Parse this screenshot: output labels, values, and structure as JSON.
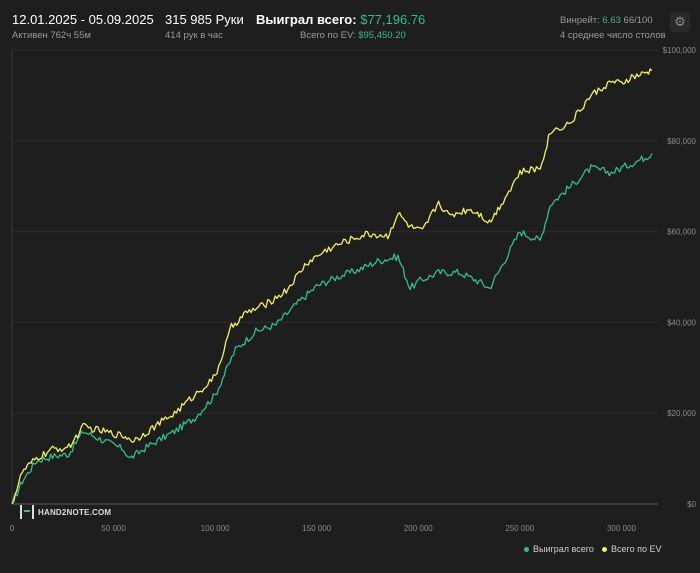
{
  "header": {
    "date_range": "12.01.2025 - 05.09.2025",
    "active_time": "Активен 762ч 55м",
    "hands": "315 985 Руки",
    "hands_per_hour": "414 рук в час",
    "won_label": "Выиграл всего:",
    "won_value": "$77,196.76",
    "ev_label": "Всего по EV:",
    "ev_value": "$95,450.20",
    "winrate_label": "Винрейт:",
    "winrate_value": "6.63",
    "winrate_suffix": "66/100",
    "tables": "4 среднее число столов",
    "settings_icon": "gear-icon"
  },
  "watermark": "HAND2NOTE.COM",
  "colors": {
    "background": "#1e1e1e",
    "won": "#2fbf8a",
    "ev": "#f2f25a",
    "grid": "#2c2c2c"
  },
  "chart_data": {
    "type": "line",
    "xlabel": "",
    "ylabel": "",
    "xlim": [
      0,
      318000
    ],
    "ylim": [
      0,
      100000
    ],
    "x_ticks": [
      0,
      50000,
      100000,
      150000,
      200000,
      250000,
      300000
    ],
    "x_tick_labels": [
      "0",
      "50 000",
      "100 000",
      "150 000",
      "200 000",
      "250 000",
      "300 000"
    ],
    "y_ticks": [
      0,
      20000,
      40000,
      60000,
      80000,
      100000
    ],
    "y_tick_labels": [
      "$0",
      "$20,000",
      "$40,000",
      "$60,000",
      "$80,000",
      "$100,000"
    ],
    "legend_position": "bottom-right",
    "series": [
      {
        "name": "Выиграл всего",
        "color": "#2fbf8a",
        "x": [
          0,
          5000,
          12000,
          20000,
          28000,
          35000,
          45000,
          55000,
          58000,
          68000,
          80000,
          90000,
          100000,
          110000,
          120000,
          130000,
          140000,
          150000,
          160000,
          170000,
          180000,
          190000,
          196000,
          200000,
          210000,
          220000,
          230000,
          235000,
          240000,
          250000,
          260000,
          265000,
          275000,
          285000,
          295000,
          300000,
          310000,
          315000
        ],
        "values": [
          0,
          5000,
          9500,
          10500,
          11000,
          16000,
          14000,
          12000,
          10000,
          13000,
          16000,
          19000,
          24000,
          34000,
          38000,
          39500,
          44000,
          48000,
          50000,
          51500,
          53500,
          54500,
          47500,
          49000,
          51000,
          51000,
          49000,
          47500,
          51500,
          60000,
          58000,
          66000,
          70000,
          74000,
          73000,
          74000,
          76000,
          77197
        ]
      },
      {
        "name": "Всего по EV",
        "color": "#f2f25a",
        "x": [
          0,
          5000,
          12000,
          20000,
          28000,
          35000,
          45000,
          55000,
          60000,
          70000,
          80000,
          90000,
          100000,
          108000,
          115000,
          125000,
          135000,
          145000,
          155000,
          165000,
          175000,
          185000,
          190000,
          196000,
          202000,
          210000,
          215000,
          225000,
          230000,
          235000,
          240000,
          250000,
          260000,
          265000,
          275000,
          285000,
          295000,
          300000,
          305000,
          310000,
          315000
        ],
        "values": [
          0,
          7000,
          10000,
          12000,
          12500,
          17000,
          16000,
          15000,
          14000,
          17000,
          20000,
          24000,
          28000,
          39000,
          42000,
          44000,
          47000,
          53000,
          56000,
          58000,
          59500,
          59000,
          64000,
          61000,
          60000,
          66500,
          63500,
          65000,
          64000,
          62000,
          65500,
          73000,
          74000,
          82000,
          84000,
          90000,
          93000,
          92500,
          94000,
          94500,
          95450
        ]
      }
    ]
  }
}
